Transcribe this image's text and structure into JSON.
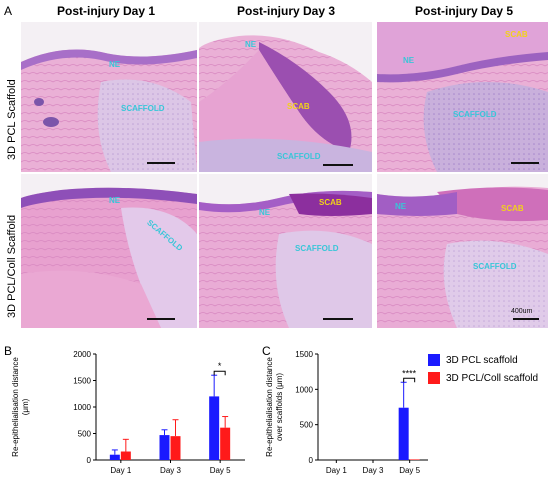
{
  "panels": {
    "A": "A",
    "B": "B",
    "C": "C"
  },
  "columns": [
    "Post-injury Day 1",
    "Post-injury Day 3",
    "Post-injury Day 5"
  ],
  "rows": [
    "3D PCL Scaffold",
    "3D PCL/Coll Scaffold"
  ],
  "tiles": [
    {
      "labels": [
        "NE",
        "SCAFFOLD"
      ]
    },
    {
      "labels": [
        "NE",
        "SCAB",
        "SCAFFOLD"
      ]
    },
    {
      "labels": [
        "NE",
        "SCAB",
        "SCAFFOLD"
      ]
    },
    {
      "labels": [
        "NE",
        "SCAFFOLD"
      ]
    },
    {
      "labels": [
        "NE",
        "SCAB",
        "SCAFFOLD"
      ]
    },
    {
      "labels": [
        "NE",
        "SCAB",
        "SCAFFOLD"
      ]
    }
  ],
  "scalebar_label": "400um",
  "colors": {
    "pcl": "#1a1aff",
    "coll": "#ff1a1a",
    "tissue_pink": "#e8a7cf",
    "tissue_purple": "#b98bd2"
  },
  "chart_data": [
    {
      "type": "bar",
      "panel": "B",
      "categories": [
        "Day 1",
        "Day 3",
        "Day 5"
      ],
      "series": [
        {
          "name": "3D PCL scaffold",
          "values": [
            100,
            470,
            1200
          ],
          "errors": [
            90,
            100,
            400
          ]
        },
        {
          "name": "3D PCL/Coll scaffold",
          "values": [
            160,
            450,
            610
          ],
          "errors": [
            230,
            310,
            210
          ]
        }
      ],
      "ylabel": "Re-epithelialisation distance (μm)",
      "ylim": [
        0,
        2000
      ],
      "yticks": [
        0,
        500,
        1000,
        1500,
        2000
      ],
      "significance": {
        "category": "Day 5",
        "label": "*"
      }
    },
    {
      "type": "bar",
      "panel": "C",
      "categories": [
        "Day 1",
        "Day 3",
        "Day 5"
      ],
      "series": [
        {
          "name": "3D PCL scaffold",
          "values": [
            0,
            0,
            740
          ],
          "errors": [
            0,
            0,
            360
          ]
        },
        {
          "name": "3D PCL/Coll scaffold",
          "values": [
            0,
            0,
            8
          ],
          "errors": [
            0,
            0,
            0
          ]
        }
      ],
      "ylabel": "Re-epithelialisation distance over scaffolds (μm)",
      "ylim": [
        0,
        1500
      ],
      "yticks": [
        0,
        500,
        1000,
        1500
      ],
      "significance": {
        "category": "Day 5",
        "label": "****"
      },
      "legend": "top-right"
    }
  ]
}
